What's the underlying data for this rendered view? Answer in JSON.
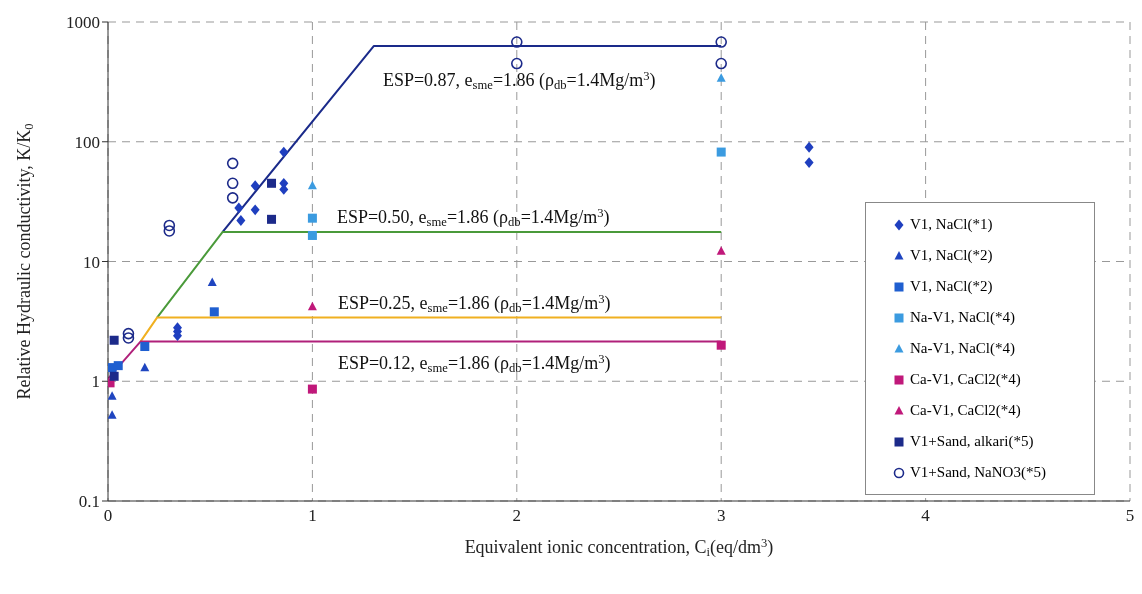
{
  "chart_data": {
    "type": "scatter",
    "xlabel": "Equivalent ionic concentration, C$_{i}$(eq/dm$^{3}$)",
    "ylabel": "Relative Hydraulic conductivity, K/K$_{0}$",
    "xlim": [
      0,
      5
    ],
    "xticks": [
      0,
      1,
      2,
      3,
      4,
      5
    ],
    "ylim": [
      0.1,
      1000
    ],
    "yticks": [
      0.1,
      1,
      10,
      100,
      1000
    ],
    "log": "y",
    "grid": true,
    "legend": "right",
    "series": [
      {
        "name": "V1, NaCl(*1)",
        "color": "#1f3fbf",
        "marker": "diamond",
        "x": [
          0.34,
          0.34,
          0.34,
          0.64,
          0.65,
          0.72,
          0.72,
          0.86,
          0.86,
          0.86,
          3.43,
          3.43
        ],
        "values": [
          2.8,
          2.6,
          2.4,
          28,
          22,
          43,
          27,
          45,
          40,
          82,
          90,
          67
        ]
      },
      {
        "name": "V1, NaCl(*2)",
        "color": "#1f45c0",
        "marker": "triangle",
        "x": [
          0.02,
          0.02,
          0.18,
          0.51
        ],
        "values": [
          0.52,
          0.75,
          1.3,
          6.7
        ]
      },
      {
        "name": "V1, NaCl(*2)",
        "color": "#1f5fd0",
        "marker": "square",
        "x": [
          0.02,
          0.05,
          0.18,
          0.52
        ],
        "values": [
          1.3,
          1.35,
          1.95,
          3.8
        ]
      },
      {
        "name": "Na-V1, NaCl(*4)",
        "color": "#3b9be0",
        "marker": "square",
        "x": [
          1,
          1,
          3
        ],
        "values": [
          23,
          16.5,
          82
        ]
      },
      {
        "name": "Na-V1, NaCl(*4)",
        "color": "#3b9be0",
        "marker": "triangle",
        "x": [
          1,
          3
        ],
        "values": [
          43,
          340
        ]
      },
      {
        "name": "Ca-V1, CaCl2(*4)",
        "color": "#c0187a",
        "marker": "square",
        "x": [
          0.01,
          1,
          3
        ],
        "values": [
          0.97,
          0.86,
          2
        ]
      },
      {
        "name": "Ca-V1, CaCl2(*4)",
        "color": "#c0187a",
        "marker": "triangle",
        "x": [
          1,
          3
        ],
        "values": [
          4.2,
          12.2
        ]
      },
      {
        "name": "V1+Sand, alkari(*5)",
        "color": "#1c2a8a",
        "marker": "square",
        "x": [
          0.03,
          0.03,
          0.8,
          0.8
        ],
        "values": [
          2.2,
          1.1,
          45,
          22.5
        ]
      },
      {
        "name": "V1+Sand, NaNO3(*5)",
        "color": "#1c2a8a",
        "marker": "circle",
        "x": [
          0.1,
          0.1,
          0.3,
          0.3,
          0.61,
          0.61,
          0.61,
          2,
          2,
          3,
          3
        ],
        "values": [
          2.5,
          2.3,
          20,
          18,
          66,
          45,
          34,
          680,
          450,
          680,
          450
        ]
      },
      {
        "type": "line",
        "color": "#1a2a8a",
        "marker": "none",
        "x": [
          0.56,
          1.3,
          3
        ],
        "values": [
          17.6,
          630,
          630
        ]
      },
      {
        "type": "line",
        "color": "#4a9a3a",
        "marker": "none",
        "x": [
          0.24,
          0.56,
          3
        ],
        "values": [
          3.4,
          17.6,
          17.6
        ]
      },
      {
        "type": "line",
        "color": "#f0b020",
        "marker": "none",
        "x": [
          0.16,
          0.24,
          3
        ],
        "values": [
          2.15,
          3.4,
          3.4
        ]
      },
      {
        "type": "line",
        "color": "#b0207a",
        "marker": "none",
        "x": [
          0,
          0.16,
          3
        ],
        "values": [
          1.05,
          2.15,
          2.15
        ]
      }
    ],
    "annotations": [
      "ESP=0.87, e$_{sme}$=1.86 (ρ$_{db}$=1.4Mg/m$^{3}$)",
      "ESP=0.50, e$_{sme}$=1.86 (ρ$_{db}$=1.4Mg/m$^{3}$)",
      "ESP=0.25, e$_{sme}$=1.86 (ρ$_{db}$=1.4Mg/m$^{3}$)",
      "ESP=0.12, e$_{sme}$=1.86 (ρ$_{db}$=1.4Mg/m$^{3}$)"
    ]
  }
}
